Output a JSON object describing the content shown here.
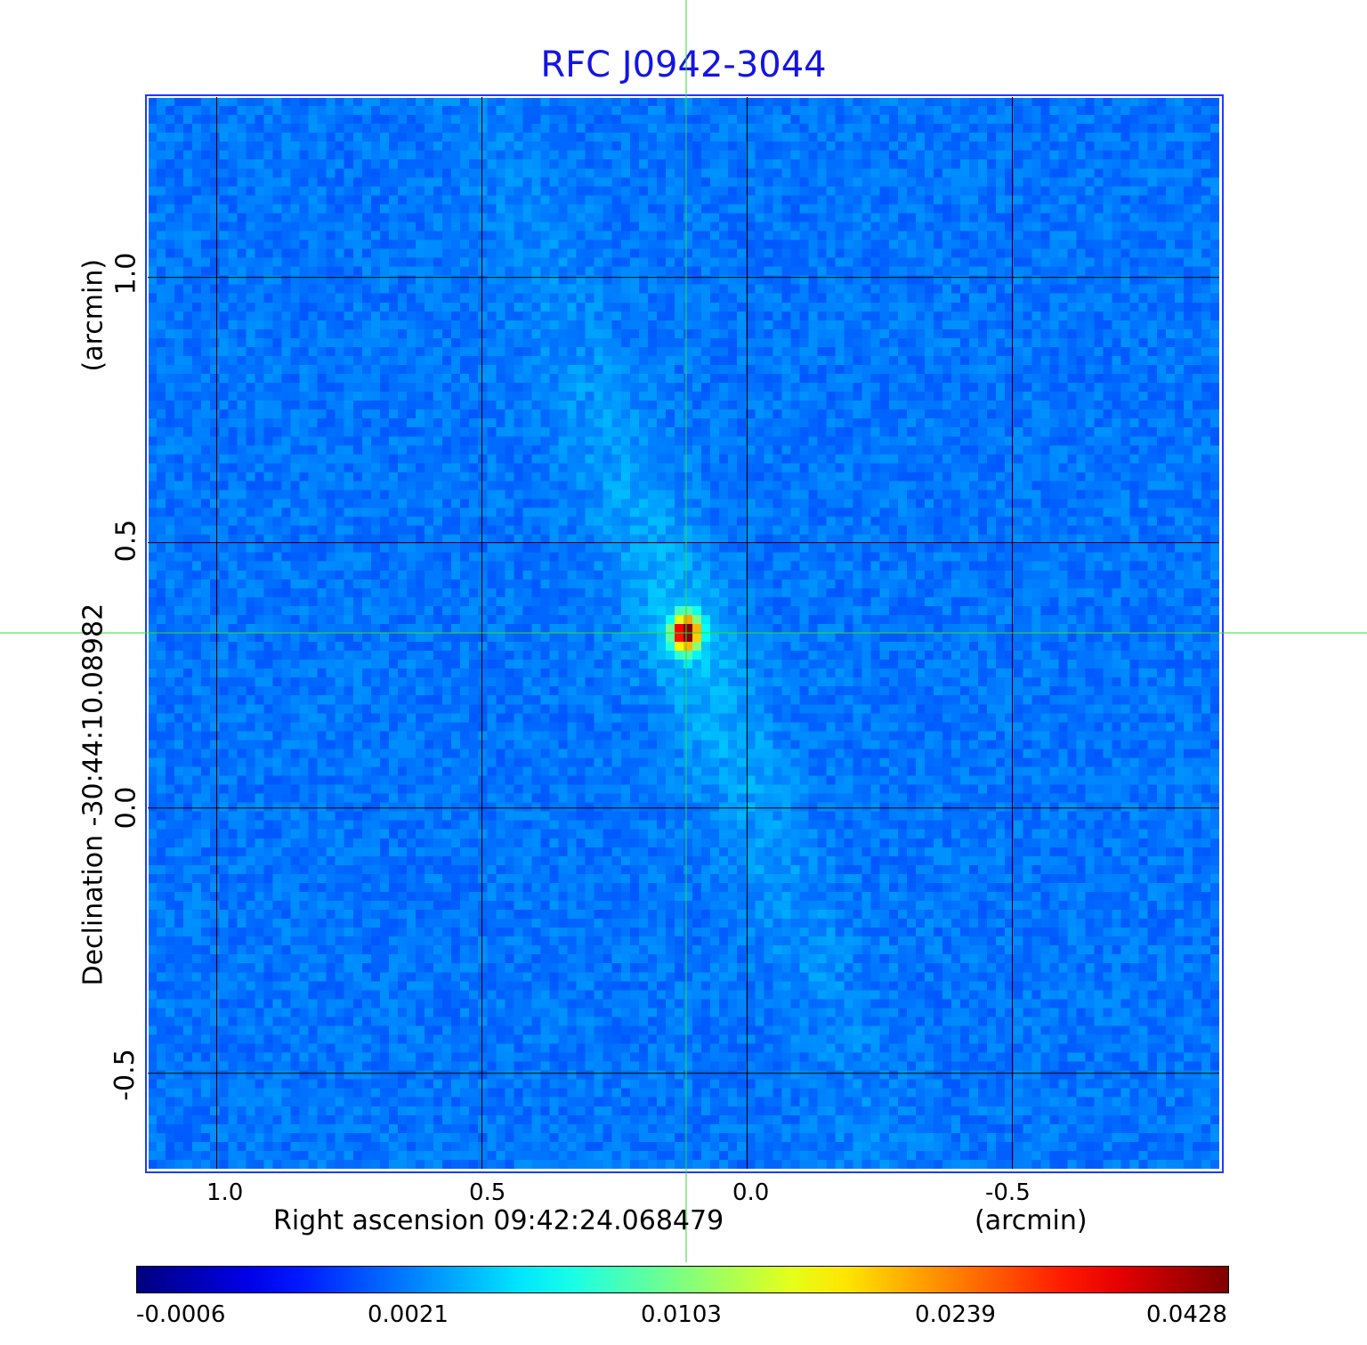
{
  "chart_data": {
    "type": "heatmap",
    "title": "RFC J0942-3044",
    "xlabel": "Right ascension  09:42:24.068479",
    "xunit": "(arcmin)",
    "ylabel": "Declination  -30:44:10.08982",
    "yunit": "(arcmin)",
    "x_ticks": [
      "1.0",
      "0.5",
      "0.0",
      "-0.5"
    ],
    "x_tick_values": [
      1.0,
      0.5,
      0.0,
      -0.5
    ],
    "y_ticks": [
      "1.0",
      "0.5",
      "0.0",
      "-0.5"
    ],
    "y_tick_values": [
      1.0,
      0.5,
      0.0,
      -0.5
    ],
    "xlim": [
      1.13,
      -0.89
    ],
    "ylim": [
      -0.68,
      1.34
    ],
    "grid": true,
    "crosshair": {
      "x": 0.115,
      "y": 0.33
    },
    "peak": {
      "x": 0.115,
      "y": 0.33,
      "value": 0.0428
    },
    "colormap": "jet",
    "colorbar": {
      "ticks": [
        "-0.0006",
        "0.0021",
        "0.0103",
        "0.0239",
        "0.0428"
      ],
      "tick_values": [
        -0.0006,
        0.0021,
        0.0103,
        0.0239,
        0.0428
      ],
      "placement": "bottom"
    }
  },
  "colors": {
    "title": "#1414e6",
    "crosshair": "#33dd33",
    "grid": "#000000"
  }
}
